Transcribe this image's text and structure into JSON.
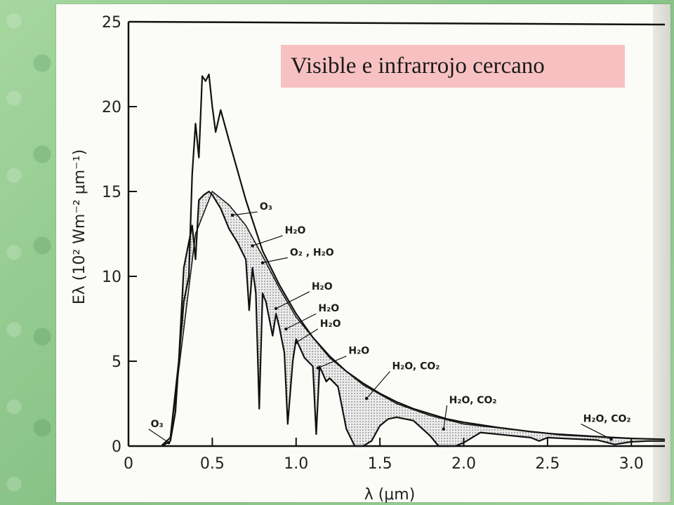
{
  "chart_data": {
    "type": "line",
    "title": "Visible e infrarrojo cercano",
    "xlabel": "λ (μm)",
    "ylabel": "Eλ (10² Wm⁻² μm⁻¹)",
    "xlim": [
      0,
      3.2
    ],
    "ylim": [
      0,
      25
    ],
    "x_ticks": [
      "0",
      "0.5",
      "1.0",
      "1.5",
      "2.0",
      "2.5",
      "3.0"
    ],
    "y_ticks": [
      "0",
      "5",
      "10",
      "15",
      "20",
      "25"
    ],
    "grid": false,
    "series": [
      {
        "x": [
          0.2,
          0.25,
          0.3,
          0.33,
          0.36,
          0.38,
          0.4,
          0.42,
          0.44,
          0.46,
          0.48,
          0.5,
          0.52,
          0.55,
          0.6,
          0.7,
          0.8,
          0.9,
          1.0,
          1.1,
          1.2,
          1.3,
          1.4,
          1.5,
          1.6,
          1.7,
          1.8,
          1.9,
          2.0,
          2.2,
          2.4,
          2.6,
          2.8,
          3.0,
          3.2
        ],
        "values": [
          0.05,
          0.5,
          5.0,
          8.5,
          10.0,
          16.0,
          19.0,
          17.0,
          21.8,
          21.5,
          21.9,
          20.0,
          18.5,
          19.8,
          18.0,
          14.5,
          11.5,
          9.5,
          7.8,
          6.4,
          5.3,
          4.4,
          3.7,
          3.1,
          2.6,
          2.2,
          1.9,
          1.6,
          1.4,
          1.1,
          0.85,
          0.65,
          0.55,
          0.45,
          0.4
        ]
      },
      {
        "x": [
          0.2,
          0.25,
          0.28,
          0.3,
          0.33,
          0.35,
          0.38,
          0.4,
          0.42,
          0.45,
          0.48,
          0.5,
          0.55,
          0.6,
          0.65,
          0.7,
          0.72,
          0.74,
          0.76,
          0.78,
          0.8,
          0.82,
          0.86,
          0.88,
          0.9,
          0.93,
          0.95,
          0.98,
          1.0,
          1.05,
          1.1,
          1.12,
          1.14,
          1.18,
          1.2,
          1.25,
          1.3,
          1.35,
          1.4,
          1.45,
          1.5,
          1.55,
          1.6,
          1.7,
          1.8,
          1.85,
          1.9,
          1.95,
          2.0,
          2.1,
          2.2,
          2.3,
          2.4,
          2.45,
          2.5,
          2.6,
          2.7,
          2.8,
          2.9,
          3.0,
          3.1,
          3.2
        ],
        "values": [
          0.0,
          0.3,
          2.0,
          5.0,
          10.5,
          11.5,
          13.0,
          11.0,
          14.5,
          14.8,
          15.0,
          14.8,
          14.0,
          12.8,
          12.0,
          11.0,
          8.0,
          10.5,
          9.0,
          2.2,
          9.0,
          8.5,
          6.5,
          7.8,
          7.0,
          5.5,
          1.3,
          5.0,
          6.3,
          5.2,
          4.7,
          0.7,
          4.7,
          3.8,
          4.0,
          3.5,
          1.0,
          0.0,
          0.0,
          0.3,
          1.2,
          1.6,
          1.7,
          1.5,
          0.6,
          0.0,
          0.0,
          0.0,
          0.2,
          0.8,
          0.7,
          0.6,
          0.5,
          0.3,
          0.5,
          0.45,
          0.4,
          0.35,
          0.1,
          0.25,
          0.3,
          0.3
        ]
      }
    ],
    "annotations": [
      {
        "text": "O₃",
        "x": 0.12,
        "y": 1.0,
        "ax": 0.24,
        "ay": 0.2
      },
      {
        "text": "O₃",
        "x": 0.77,
        "y": 13.8,
        "ax": 0.62,
        "ay": 13.6
      },
      {
        "text": "H₂O",
        "x": 0.92,
        "y": 12.4,
        "ax": 0.74,
        "ay": 11.8
      },
      {
        "text": "O₂ , H₂O",
        "x": 0.95,
        "y": 11.1,
        "ax": 0.8,
        "ay": 10.8
      },
      {
        "text": "H₂O",
        "x": 1.08,
        "y": 9.1,
        "ax": 0.88,
        "ay": 8.1
      },
      {
        "text": "H₂O",
        "x": 1.12,
        "y": 7.8,
        "ax": 0.94,
        "ay": 6.9
      },
      {
        "text": "H₂O",
        "x": 1.13,
        "y": 6.9,
        "ax": 1.0,
        "ay": 6.1
      },
      {
        "text": "H₂O",
        "x": 1.3,
        "y": 5.3,
        "ax": 1.13,
        "ay": 4.6
      },
      {
        "text": "H₂O, CO₂",
        "x": 1.56,
        "y": 4.4,
        "ax": 1.42,
        "ay": 2.8
      },
      {
        "text": "H₂O, CO₂",
        "x": 1.9,
        "y": 2.4,
        "ax": 1.88,
        "ay": 1.0
      },
      {
        "text": "H₂O, CO₂",
        "x": 2.7,
        "y": 1.3,
        "ax": 2.88,
        "ay": 0.4
      }
    ]
  }
}
